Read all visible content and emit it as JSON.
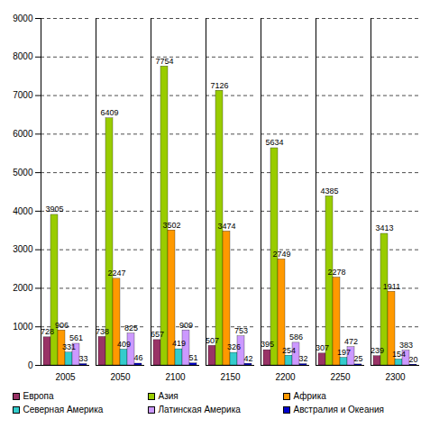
{
  "chart_data": {
    "type": "bar",
    "categories": [
      "2005",
      "2050",
      "2100",
      "2150",
      "2200",
      "2250",
      "2300"
    ],
    "series": [
      {
        "name": "Европа",
        "color": "#993366",
        "values": [
          728,
          738,
          657,
          507,
          395,
          307,
          239
        ]
      },
      {
        "name": "Азия",
        "color": "#99cc00",
        "values": [
          3905,
          6409,
          7754,
          7126,
          5634,
          4385,
          3413
        ]
      },
      {
        "name": "Африка",
        "color": "#ff9900",
        "values": [
          906,
          2247,
          3502,
          3474,
          2749,
          2278,
          1911
        ]
      },
      {
        "name": "Северная Америка",
        "color": "#33cccc",
        "values": [
          331,
          409,
          419,
          326,
          254,
          197,
          154
        ]
      },
      {
        "name": "Латинская Америка",
        "color": "#cc99ff",
        "values": [
          561,
          825,
          909,
          753,
          586,
          472,
          383
        ]
      },
      {
        "name": "Австралия и Океания",
        "color": "#0000cc",
        "values": [
          33,
          46,
          51,
          42,
          32,
          25,
          20
        ]
      }
    ],
    "ylim": [
      0,
      9000
    ],
    "yticks": [
      0,
      1000,
      2000,
      3000,
      4000,
      5000,
      6000,
      7000,
      8000,
      9000
    ],
    "grid": true,
    "data_labels": true,
    "legend": "bottom"
  }
}
